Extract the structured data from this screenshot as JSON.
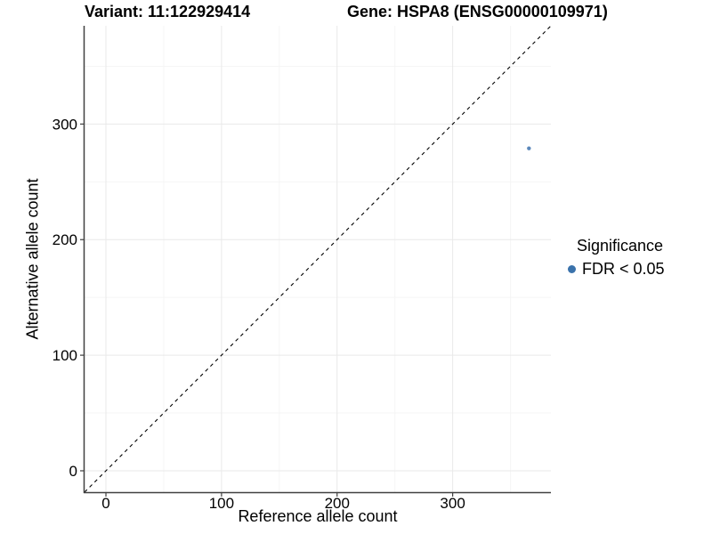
{
  "chart_data": {
    "type": "scatter",
    "title_variant": "Variant: 11:122929414",
    "title_gene": "Gene: HSPA8 (ENSG00000109971)",
    "xlabel": "Reference allele count",
    "ylabel": "Alternative allele count",
    "xlim": [
      -18.5,
      385
    ],
    "ylim": [
      -18.5,
      385
    ],
    "x_ticks": [
      0,
      100,
      200,
      300
    ],
    "y_ticks": [
      0,
      100,
      200,
      300
    ],
    "x_minor_ticks": [
      50,
      150,
      250,
      350
    ],
    "y_minor_ticks": [
      50,
      150,
      250,
      350
    ],
    "grid": true,
    "legend_position": "right",
    "identity_line": {
      "type": "dashed",
      "color": "#000000",
      "slope": 1,
      "intercept": 0
    },
    "points": [
      {
        "x": 366,
        "y": 279,
        "series": "FDR < 0.05",
        "color": "#5b88bb",
        "radius": 2.2
      }
    ],
    "legend": {
      "title": "Significance",
      "items": [
        {
          "label": "FDR < 0.05",
          "color": "#3a72ab",
          "marker": "circle"
        }
      ]
    },
    "colors": {
      "axis_line": "#404040",
      "grid_major": "#e9e9e9",
      "grid_minor": "#f5f5f5",
      "tick_text": "#000000"
    }
  }
}
